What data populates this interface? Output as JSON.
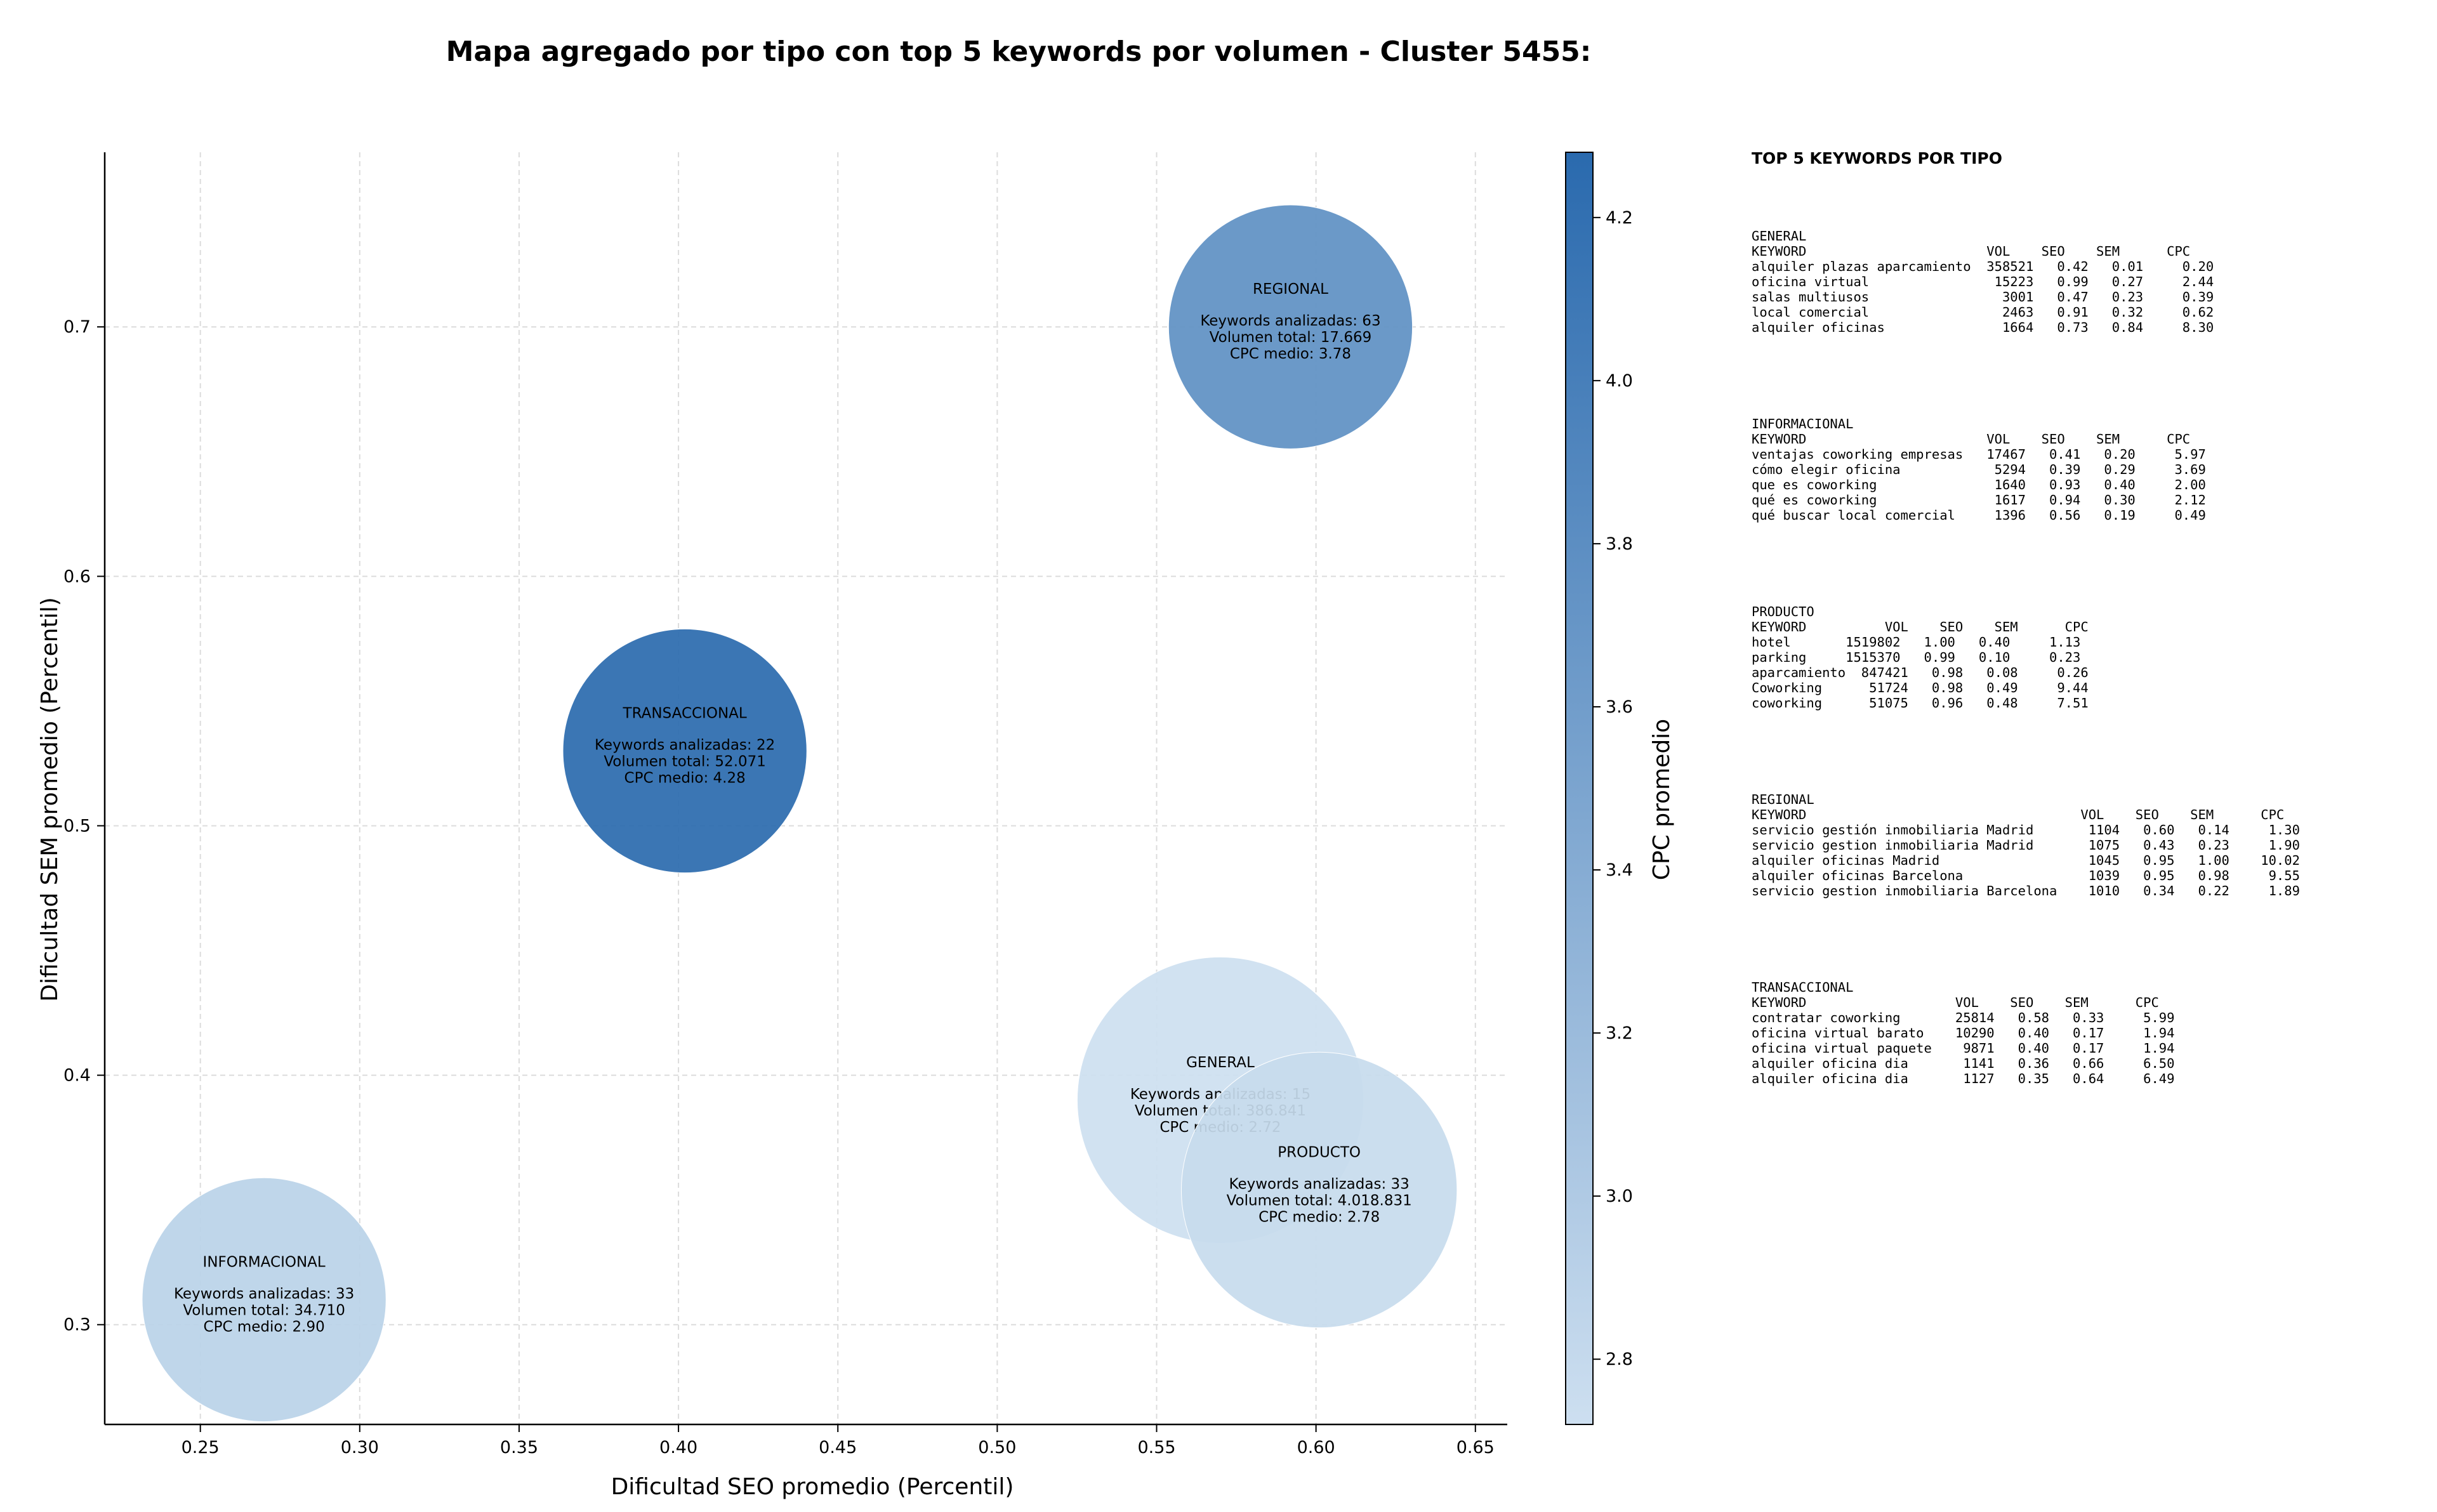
{
  "chart_data": {
    "type": "scatter",
    "title": "Mapa agregado por tipo con top 5 keywords por volumen - Cluster 5455:",
    "xlabel": "Dificultad SEO promedio (Percentil)",
    "ylabel": "Dificultad SEM promedio (Percentil)",
    "xlim": [
      0.22,
      0.66
    ],
    "ylim": [
      0.26,
      0.77
    ],
    "xticks": [
      "0.25",
      "0.30",
      "0.35",
      "0.40",
      "0.45",
      "0.50",
      "0.55",
      "0.60",
      "0.65"
    ],
    "yticks": [
      "0.3",
      "0.4",
      "0.5",
      "0.6",
      "0.7"
    ],
    "grid": true,
    "colorbar": {
      "label": "CPC promedio",
      "range": [
        2.72,
        4.28
      ],
      "ticks": [
        "2.8",
        "3.0",
        "3.2",
        "3.4",
        "3.6",
        "3.8",
        "4.0",
        "4.2"
      ],
      "colors": [
        "#cddff0",
        "#2a6aae"
      ]
    },
    "points": [
      {
        "label": "GENERAL",
        "x": 0.57,
        "y": 0.39,
        "keywords": "Keywords analizadas: 15",
        "volumen": "Volumen total: 386.841",
        "cpc_text": "CPC medio: 2.72",
        "cpc": 2.72,
        "size": 0.27
      },
      {
        "label": "INFORMACIONAL",
        "x": 0.27,
        "y": 0.31,
        "keywords": "Keywords analizadas: 33",
        "volumen": "Volumen total: 34.710",
        "cpc_text": "CPC medio: 2.90",
        "cpc": 2.9,
        "size": 0.23
      },
      {
        "label": "PRODUCTO",
        "x": 0.601,
        "y": 0.354,
        "keywords": "Keywords analizadas: 33",
        "volumen": "Volumen total: 4.018.831",
        "cpc_text": "CPC medio: 2.78",
        "cpc": 2.78,
        "size": 0.26
      },
      {
        "label": "REGIONAL",
        "x": 0.592,
        "y": 0.7,
        "keywords": "Keywords analizadas: 63",
        "volumen": "Volumen total: 17.669",
        "cpc_text": "CPC medio: 3.78",
        "cpc": 3.78,
        "size": 0.23
      },
      {
        "label": "TRANSACCIONAL",
        "x": 0.402,
        "y": 0.53,
        "keywords": "Keywords analizadas: 22",
        "volumen": "Volumen total: 52.071",
        "cpc_text": "CPC medio: 4.28",
        "cpc": 4.28,
        "size": 0.23
      }
    ]
  },
  "panel": {
    "title": "TOP 5 KEYWORDS POR TIPO",
    "blocks": [
      {
        "type": "GENERAL",
        "header": "KEYWORD                       VOL    SEO    SEM      CPC",
        "lines": [
          "alquiler plazas aparcamiento  358521   0.42   0.01     0.20",
          "oficina virtual                15223   0.99   0.27     2.44",
          "salas multiusos                 3001   0.47   0.23     0.39",
          "local comercial                 2463   0.91   0.32     0.62",
          "alquiler oficinas               1664   0.73   0.84     8.30"
        ]
      },
      {
        "type": "INFORMACIONAL",
        "header": "KEYWORD                       VOL    SEO    SEM      CPC",
        "lines": [
          "ventajas coworking empresas   17467   0.41   0.20     5.97",
          "cómo elegir oficina            5294   0.39   0.29     3.69",
          "que es coworking               1640   0.93   0.40     2.00",
          "qué es coworking               1617   0.94   0.30     2.12",
          "qué buscar local comercial     1396   0.56   0.19     0.49"
        ]
      },
      {
        "type": "PRODUCTO",
        "header": "KEYWORD          VOL    SEO    SEM      CPC",
        "lines": [
          "hotel       1519802   1.00   0.40     1.13",
          "parking     1515370   0.99   0.10     0.23",
          "aparcamiento  847421   0.98   0.08     0.26",
          "Coworking      51724   0.98   0.49     9.44",
          "coworking      51075   0.96   0.48     7.51"
        ]
      },
      {
        "type": "REGIONAL",
        "header": "KEYWORD                                   VOL    SEO    SEM      CPC",
        "lines": [
          "servicio gestión inmobiliaria Madrid       1104   0.60   0.14     1.30",
          "servicio gestion inmobiliaria Madrid       1075   0.43   0.23     1.90",
          "alquiler oficinas Madrid                   1045   0.95   1.00    10.02",
          "alquiler oficinas Barcelona                1039   0.95   0.98     9.55",
          "servicio gestion inmobiliaria Barcelona    1010   0.34   0.22     1.89"
        ]
      },
      {
        "type": "TRANSACCIONAL",
        "header": "KEYWORD                   VOL    SEO    SEM      CPC",
        "lines": [
          "contratar coworking       25814   0.58   0.33     5.99",
          "oficina virtual barato    10290   0.40   0.17     1.94",
          "oficina virtual paquete    9871   0.40   0.17     1.94",
          "alquiler oficina dia       1141   0.36   0.66     6.50",
          "alquiler oficina dia       1127   0.35   0.64     6.49"
        ]
      }
    ]
  }
}
